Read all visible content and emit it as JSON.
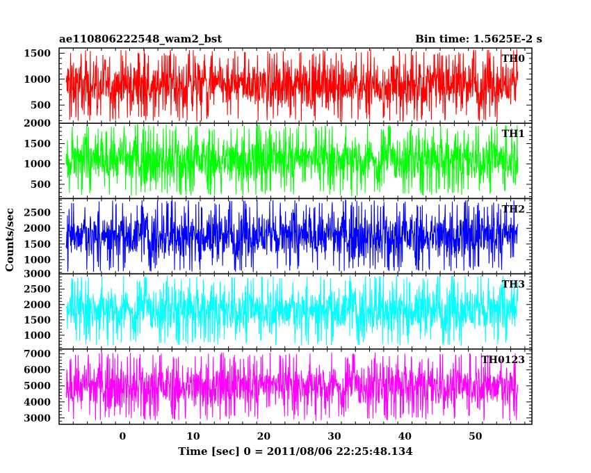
{
  "header": {
    "left": "ae110806222548_wam2_bst",
    "right": "Bin time: 1.5625E-2 s"
  },
  "chart_data": {
    "type": "line",
    "title": "ae110806222548_wam2_bst",
    "subtitle": "Bin time: 1.5625E-2 s",
    "xlabel": "Time [sec] 0 = 2011/08/06 22:25:48.134",
    "ylabel": "Counts/sec",
    "xlim": [
      -9,
      58
    ],
    "x_range_data": [
      -8,
      56
    ],
    "xticks": [
      0,
      10,
      20,
      30,
      40,
      50
    ],
    "grid": false,
    "panels": [
      {
        "name": "TH0",
        "color": "#ff0000",
        "ylim": [
          150,
          1600
        ],
        "yticks": [
          500,
          1000,
          1500
        ],
        "tick_labels": [
          "500",
          "1000",
          "1500"
        ],
        "mean": 780,
        "min": 180,
        "max": 1580
      },
      {
        "name": "TH1",
        "color": "#00ff00",
        "ylim": [
          150,
          2000
        ],
        "yticks": [
          500,
          1000,
          1500,
          2000
        ],
        "tick_labels": [
          "500",
          "1000",
          "1500",
          "2000"
        ],
        "mean": 950,
        "min": 200,
        "max": 1980
      },
      {
        "name": "TH2",
        "color": "#0000ff",
        "ylim": [
          550,
          2950
        ],
        "yticks": [
          1000,
          1500,
          2000,
          2500
        ],
        "tick_labels": [
          "1000",
          "1500",
          "2000",
          "2500"
        ],
        "mean": 1600,
        "min": 600,
        "max": 2900
      },
      {
        "name": "TH3",
        "color": "#00ffff",
        "ylim": [
          550,
          3000
        ],
        "yticks": [
          1000,
          1500,
          2000,
          2500,
          3000
        ],
        "tick_labels": [
          "1000",
          "1500",
          "2000",
          "2500",
          "3000"
        ],
        "mean": 1700,
        "min": 650,
        "max": 2950
      },
      {
        "name": "TH0123",
        "color": "#ff00ff",
        "ylim": [
          2600,
          7300
        ],
        "yticks": [
          3000,
          4000,
          5000,
          6000,
          7000
        ],
        "tick_labels": [
          "3000",
          "4000",
          "5000",
          "6000",
          "7000"
        ],
        "mean": 4800,
        "min": 2800,
        "max": 7100
      }
    ]
  }
}
